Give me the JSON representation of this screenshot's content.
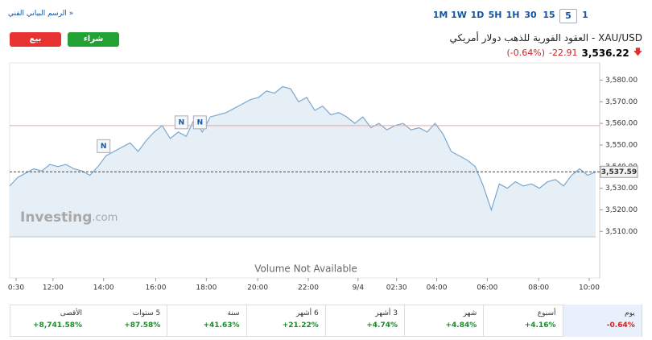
{
  "toolbar": {
    "link": "الرسم البياني الفني »",
    "timeframes": [
      "1M",
      "1W",
      "1D",
      "5H",
      "1H",
      "30",
      "15",
      "5",
      "1"
    ],
    "selected_index": 7
  },
  "actions": {
    "sell": "بيع",
    "buy": "شراء"
  },
  "quote": {
    "title": "XAU/USD - العقود الفورية للذهب دولار أمريكي",
    "price": "3,536.22",
    "change": "-22.91",
    "change_pct": "(-0.64%)"
  },
  "chart_data": {
    "type": "area",
    "values": [
      3531,
      3535,
      3537,
      3539,
      3538,
      3541,
      3540,
      3541,
      3539,
      3538,
      3536,
      3540,
      3545,
      3547,
      3549,
      3551,
      3547,
      3552,
      3556,
      3559,
      3553,
      3556,
      3554,
      3562,
      3556,
      3563,
      3564,
      3565,
      3567,
      3569,
      3571,
      3572,
      3575,
      3574,
      3577,
      3576,
      3570,
      3572,
      3566,
      3568,
      3564,
      3565,
      3563,
      3560,
      3563,
      3558,
      3560,
      3557,
      3559,
      3560,
      3557,
      3558,
      3556,
      3560,
      3555,
      3547,
      3545,
      3543,
      3540,
      3531,
      3520,
      3532,
      3530,
      3533,
      3531,
      3532,
      3530,
      3533,
      3534,
      3531,
      3536,
      3539,
      3536,
      3537.59
    ],
    "color": "#7aa7cf",
    "xlim": [
      0,
      73
    ],
    "xticks": [
      {
        "value": 0.8,
        "label": "0:30"
      },
      {
        "value": 5.4,
        "label": "12:00"
      },
      {
        "value": 11.7,
        "label": "14:00"
      },
      {
        "value": 18.2,
        "label": "16:00"
      },
      {
        "value": 24.5,
        "label": "18:00"
      },
      {
        "value": 30.9,
        "label": "20:00"
      },
      {
        "value": 37.2,
        "label": "22:00"
      },
      {
        "value": 43.4,
        "label": "9/4"
      },
      {
        "value": 48.2,
        "label": "02:30"
      },
      {
        "value": 53.2,
        "label": "04:00"
      },
      {
        "value": 59.5,
        "label": "06:00"
      },
      {
        "value": 65.9,
        "label": "08:00"
      },
      {
        "value": 72.2,
        "label": "10:00"
      }
    ],
    "ylim": [
      3507.5,
      3588
    ],
    "yticks": [
      {
        "value": 3580,
        "label": "3,580.00"
      },
      {
        "value": 3570,
        "label": "3,570.00"
      },
      {
        "value": 3560,
        "label": "3,560.00"
      },
      {
        "value": 3550,
        "label": "3,550.00"
      },
      {
        "value": 3540,
        "label": "3,540.00"
      },
      {
        "value": 3530,
        "label": "3,530.00"
      },
      {
        "value": 3520,
        "label": "3,520.00"
      },
      {
        "value": 3510,
        "label": "3,510.00"
      }
    ],
    "reference_line": 3559,
    "last_price": 3537.59,
    "last_price_label": "3,537.59",
    "news": [
      {
        "x": 11.7,
        "label": "N"
      },
      {
        "x": 21.4,
        "label": "N"
      },
      {
        "x": 23.7,
        "label": "N"
      }
    ],
    "watermark": "Investing",
    "watermark_suffix": ".com",
    "volume_note": "Volume Not Available"
  },
  "performance": [
    {
      "label": "يوم",
      "value": "-0.64%"
    },
    {
      "label": "أسبوع",
      "value": "+4.16%"
    },
    {
      "label": "شهر",
      "value": "+4.84%"
    },
    {
      "label": "3 أشهر",
      "value": "+4.74%"
    },
    {
      "label": "6 أشهر",
      "value": "+21.22%"
    },
    {
      "label": "سنة",
      "value": "+41.63%"
    },
    {
      "label": "5 سنوات",
      "value": "+87.58%"
    },
    {
      "label": "الأقصى",
      "value": "+8,741.58%"
    }
  ]
}
